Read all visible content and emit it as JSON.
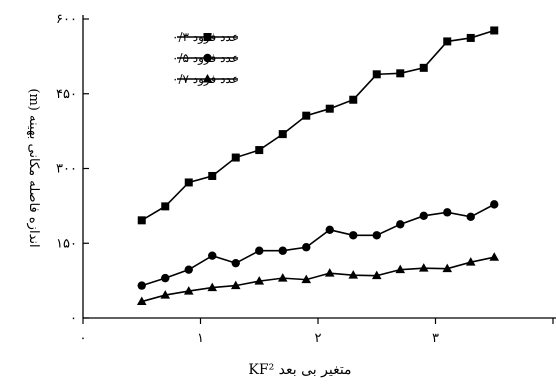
{
  "chart_data": {
    "type": "line",
    "title": "",
    "xlabel": "متغیر بی بعد KF²",
    "ylabel": "اندازه فاصله مکانی بهینه (m)",
    "xlim": [
      0,
      4
    ],
    "ylim": [
      0,
      600
    ],
    "xticks": [
      {
        "value": 0,
        "label": "۰"
      },
      {
        "value": 1,
        "label": "۱"
      },
      {
        "value": 2,
        "label": "۲"
      },
      {
        "value": 3,
        "label": "۳"
      }
    ],
    "yticks": [
      {
        "value": 0,
        "label": "۰"
      },
      {
        "value": 150,
        "label": "۱۵۰"
      },
      {
        "value": 300,
        "label": "۳۰۰"
      },
      {
        "value": 450,
        "label": "۴۵۰"
      },
      {
        "value": 600,
        "label": "۶۰۰"
      }
    ],
    "grid": false,
    "legend_position": "top-left",
    "x": [
      0.5,
      0.7,
      0.9,
      1.1,
      1.3,
      1.5,
      1.7,
      1.9,
      2.1,
      2.3,
      2.5,
      2.7,
      2.9,
      3.1,
      3.3,
      3.5
    ],
    "series": [
      {
        "name": "عدد فرود ۰/۳",
        "marker": "square",
        "values": [
          196,
          224,
          272,
          285,
          322,
          337,
          369,
          406,
          420,
          438,
          489,
          491,
          502,
          555,
          562,
          577
        ]
      },
      {
        "name": "عدد فرود ۰/۵",
        "marker": "circle",
        "values": [
          65,
          80,
          97,
          125,
          110,
          135,
          135,
          142,
          177,
          166,
          166,
          188,
          205,
          212,
          203,
          228
        ]
      },
      {
        "name": "عدد فرود ۰/۷",
        "marker": "triangle",
        "values": [
          33,
          46,
          54,
          61,
          65,
          74,
          80,
          77,
          90,
          86,
          85,
          97,
          100,
          99,
          112,
          122
        ]
      }
    ]
  }
}
